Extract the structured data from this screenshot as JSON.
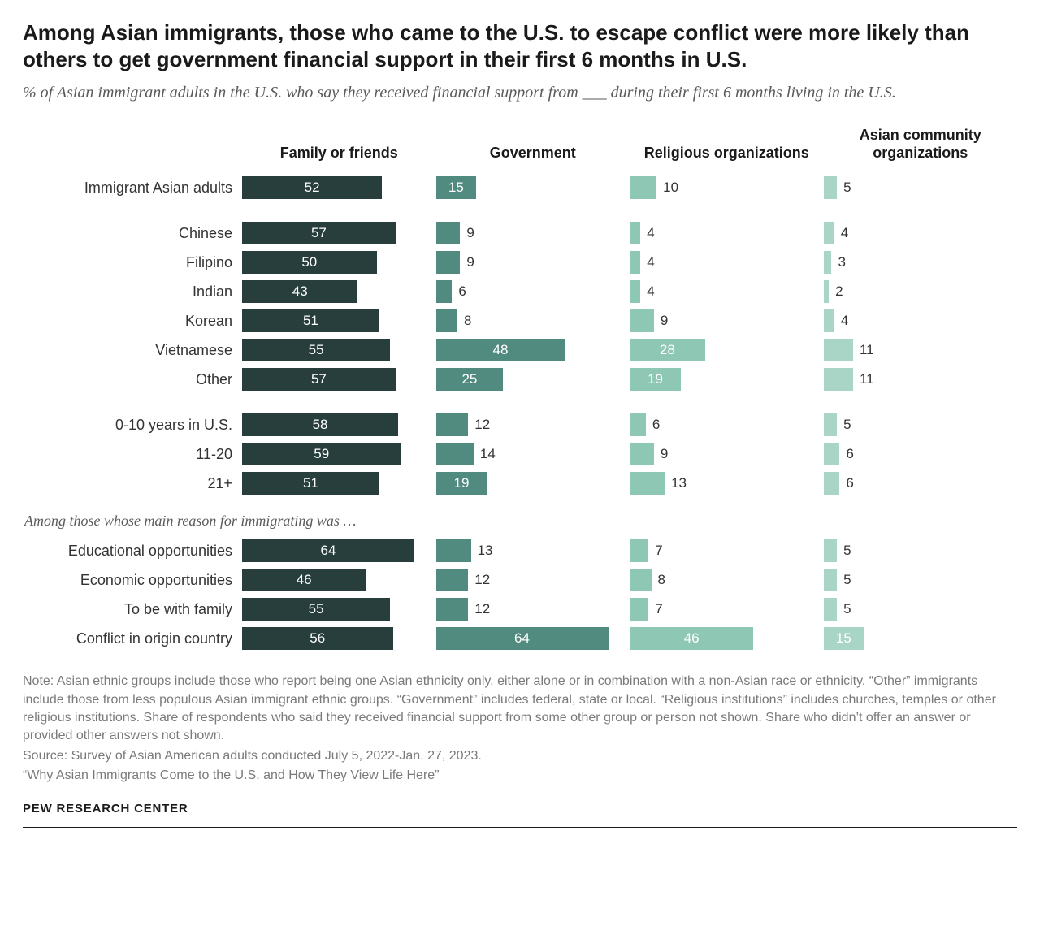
{
  "title": "Among Asian immigrants, those who came to the U.S. to escape conflict were more likely than others to get government financial support in their first 6 months in U.S.",
  "subtitle": "% of Asian immigrant adults in the U.S. who say they received financial support from ___ during their first 6 months living in the U.S.",
  "columns": [
    {
      "label": "Family or friends",
      "color": "#283e3c",
      "max": 72
    },
    {
      "label": "Government",
      "color": "#518b7f",
      "max": 72
    },
    {
      "label": "Religious organizations",
      "color": "#8fc7b5",
      "max": 72
    },
    {
      "label": "Asian community organizations",
      "color": "#a9d5c7",
      "max": 72
    }
  ],
  "label_outside_threshold": 15,
  "groups": [
    {
      "rows": [
        {
          "label": "Immigrant Asian adults",
          "values": [
            52,
            15,
            10,
            5
          ]
        }
      ]
    },
    {
      "rows": [
        {
          "label": "Chinese",
          "values": [
            57,
            9,
            4,
            4
          ]
        },
        {
          "label": "Filipino",
          "values": [
            50,
            9,
            4,
            3
          ]
        },
        {
          "label": "Indian",
          "values": [
            43,
            6,
            4,
            2
          ]
        },
        {
          "label": "Korean",
          "values": [
            51,
            8,
            9,
            4
          ]
        },
        {
          "label": "Vietnamese",
          "values": [
            55,
            48,
            28,
            11
          ]
        },
        {
          "label": "Other",
          "values": [
            57,
            25,
            19,
            11
          ]
        }
      ]
    },
    {
      "rows": [
        {
          "label": "0-10 years in U.S.",
          "values": [
            58,
            12,
            6,
            5
          ]
        },
        {
          "label": "11-20",
          "values": [
            59,
            14,
            9,
            6
          ]
        },
        {
          "label": "21+",
          "values": [
            51,
            19,
            13,
            6
          ]
        }
      ]
    },
    {
      "section_label": "Among those whose main reason for immigrating was …",
      "rows": [
        {
          "label": "Educational opportunities",
          "values": [
            64,
            13,
            7,
            5
          ]
        },
        {
          "label": "Economic opportunities",
          "values": [
            46,
            12,
            8,
            5
          ]
        },
        {
          "label": "To be with family",
          "values": [
            55,
            12,
            7,
            5
          ]
        },
        {
          "label": "Conflict in origin country",
          "values": [
            56,
            64,
            46,
            15
          ]
        }
      ]
    }
  ],
  "note": "Note: Asian ethnic groups include those who report being one Asian ethnicity only, either alone or in combination with a non-Asian race or ethnicity. “Other” immigrants include those from less populous Asian immigrant ethnic groups. “Government” includes federal, state or local. “Religious institutions” includes churches, temples or other religious institutions. Share of respondents who said they received financial support from some other group or person not shown. Share who didn’t offer an answer or provided other answers not shown.",
  "source": "Source: Survey of Asian American adults conducted July 5, 2022-Jan. 27, 2023.",
  "report": "“Why Asian Immigrants Come to the U.S. and How They View Life Here”",
  "footer": "PEW RESEARCH CENTER"
}
